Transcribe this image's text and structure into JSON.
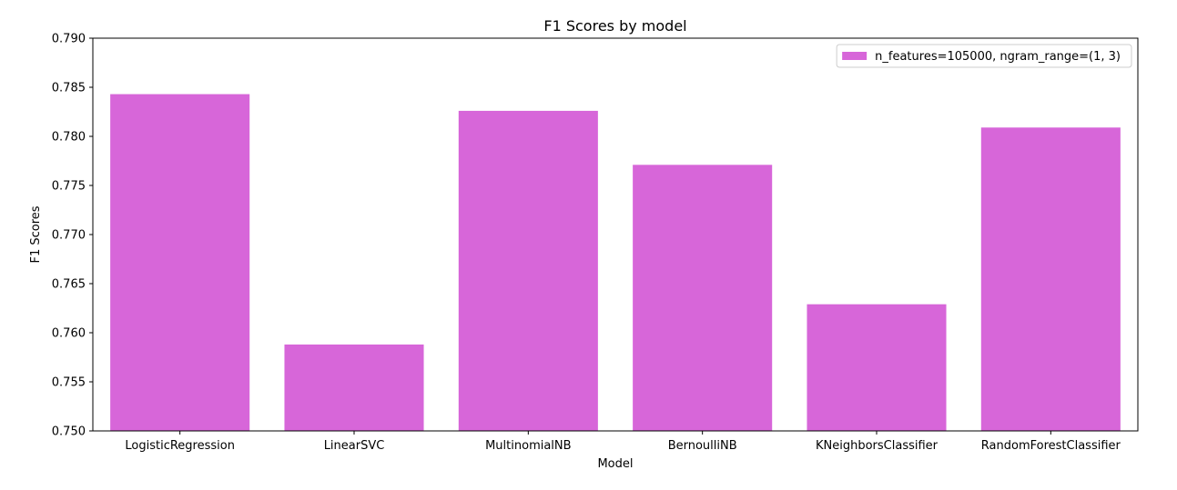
{
  "chart_data": {
    "type": "bar",
    "title": "F1 Scores by model",
    "xlabel": "Model",
    "ylabel": "F1 Scores",
    "ylim": [
      0.75,
      0.79
    ],
    "yticks": [
      "0.750",
      "0.755",
      "0.760",
      "0.765",
      "0.770",
      "0.775",
      "0.780",
      "0.785",
      "0.790"
    ],
    "categories": [
      "LogisticRegression",
      "LinearSVC",
      "MultinomialNB",
      "BernoulliNB",
      "KNeighborsClassifier",
      "RandomForestClassifier"
    ],
    "series": [
      {
        "name": "n_features=105000, ngram_range=(1, 3)",
        "color": "#d766d9",
        "values": [
          0.7843,
          0.7588,
          0.7826,
          0.7771,
          0.7629,
          0.7809
        ]
      }
    ],
    "grid": false,
    "legend_position": "top-right"
  }
}
